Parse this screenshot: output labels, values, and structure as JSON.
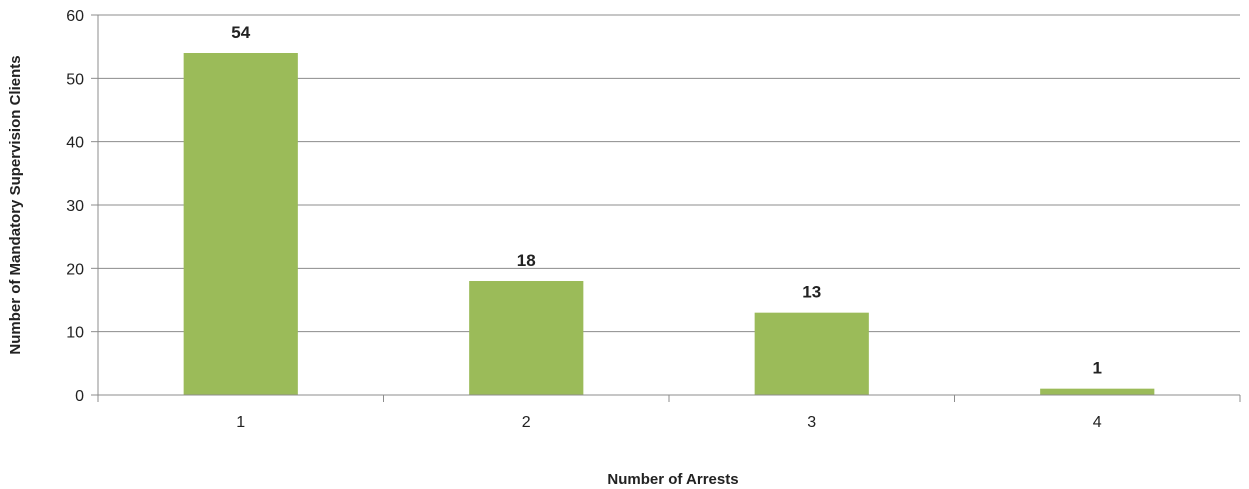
{
  "chart_data": {
    "type": "bar",
    "title": "",
    "xlabel": "Number of Arrests",
    "ylabel": "Number of Mandatory Supervision Clients",
    "categories": [
      "1",
      "2",
      "3",
      "4"
    ],
    "values": [
      54,
      18,
      13,
      1
    ],
    "data_labels": [
      "54",
      "18",
      "13",
      "1"
    ],
    "ylim": [
      0,
      60
    ],
    "yticks": [
      "0",
      "10",
      "20",
      "30",
      "40",
      "50",
      "60"
    ],
    "ytick_values": [
      0,
      10,
      20,
      30,
      40,
      50,
      60
    ],
    "grid": true,
    "legend": "none",
    "colors": {
      "bar": "#9bbb59",
      "grid": "#8c8c8c",
      "axis": "#8c8c8c",
      "text": "#222222"
    }
  }
}
